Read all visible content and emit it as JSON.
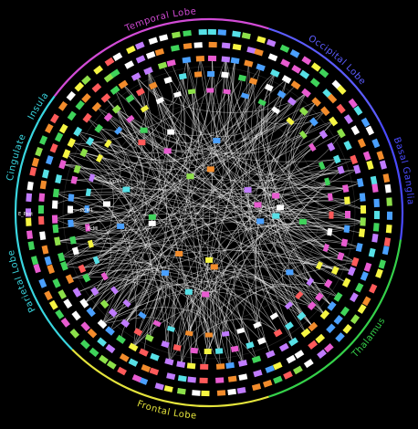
{
  "diagram": {
    "lobes": [
      {
        "label": "Temporal Lobe",
        "color": "#d24bd6"
      },
      {
        "label": "Occipital Lobe",
        "color": "#5c5cff"
      },
      {
        "label": "Basal Ganglia",
        "color": "#4a4aff"
      },
      {
        "label": "Thalamus",
        "color": "#35d14a"
      },
      {
        "label": "Frontal Lobe",
        "color": "#e4e43c"
      },
      {
        "label": "Parietal Lobe",
        "color": "#39d6e0"
      },
      {
        "label": "Cingulate",
        "color": "#39d6e0"
      },
      {
        "label": "Insula",
        "color": "#39d6e0"
      }
    ],
    "inner_labels": [
      {
        "text": "E_Post"
      },
      {
        "text": "PCM1"
      },
      {
        "text": "PcMl"
      },
      {
        "text": "OpSa1"
      }
    ],
    "node_palette": [
      "#3fd35a",
      "#e85bd0",
      "#4aa0ff",
      "#f28c2c",
      "#f5f542",
      "#56e0e6",
      "#ff5a5a",
      "#c07bff",
      "#8de04a",
      "#ffffff"
    ],
    "edge_color": "#ffffff"
  }
}
